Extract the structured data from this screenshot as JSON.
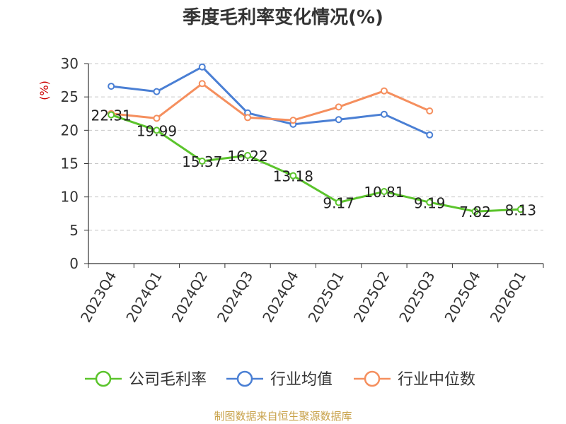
{
  "chart_data": {
    "type": "line",
    "title": "季度毛利率变化情况(%)",
    "ylabel": "(%)",
    "xlabel": "",
    "ylim": [
      0,
      30
    ],
    "yticks": [
      0,
      5,
      10,
      15,
      20,
      25,
      30
    ],
    "grid": true,
    "legend_position": "bottom",
    "categories": [
      "2023Q4",
      "2024Q1",
      "2024Q2",
      "2024Q3",
      "2024Q4",
      "2025Q1",
      "2025Q2",
      "2025Q3",
      "2025Q4",
      "2026Q1"
    ],
    "series": [
      {
        "name": "公司毛利率",
        "color": "#5bc42c",
        "values": [
          22.31,
          19.99,
          15.37,
          16.22,
          13.18,
          9.17,
          10.81,
          9.19,
          7.82,
          8.13
        ],
        "labels": [
          "22.31",
          "19.99",
          "15.37",
          "16.22",
          "13.18",
          "9.17",
          "10.81",
          "9.19",
          "7.82",
          "8.13"
        ]
      },
      {
        "name": "行业均值",
        "color": "#4a7fd4",
        "values": [
          26.6,
          25.8,
          29.5,
          22.6,
          20.9,
          21.6,
          22.4,
          19.3,
          null,
          null
        ]
      },
      {
        "name": "行业中位数",
        "color": "#f58f5e",
        "values": [
          22.5,
          21.8,
          27.0,
          21.9,
          21.5,
          23.5,
          25.9,
          22.9,
          null,
          null
        ]
      }
    ]
  },
  "colors": {
    "ylabel": "#cc0000",
    "source": "#c8a24a"
  },
  "source_note": "制图数据来自恒生聚源数据库"
}
